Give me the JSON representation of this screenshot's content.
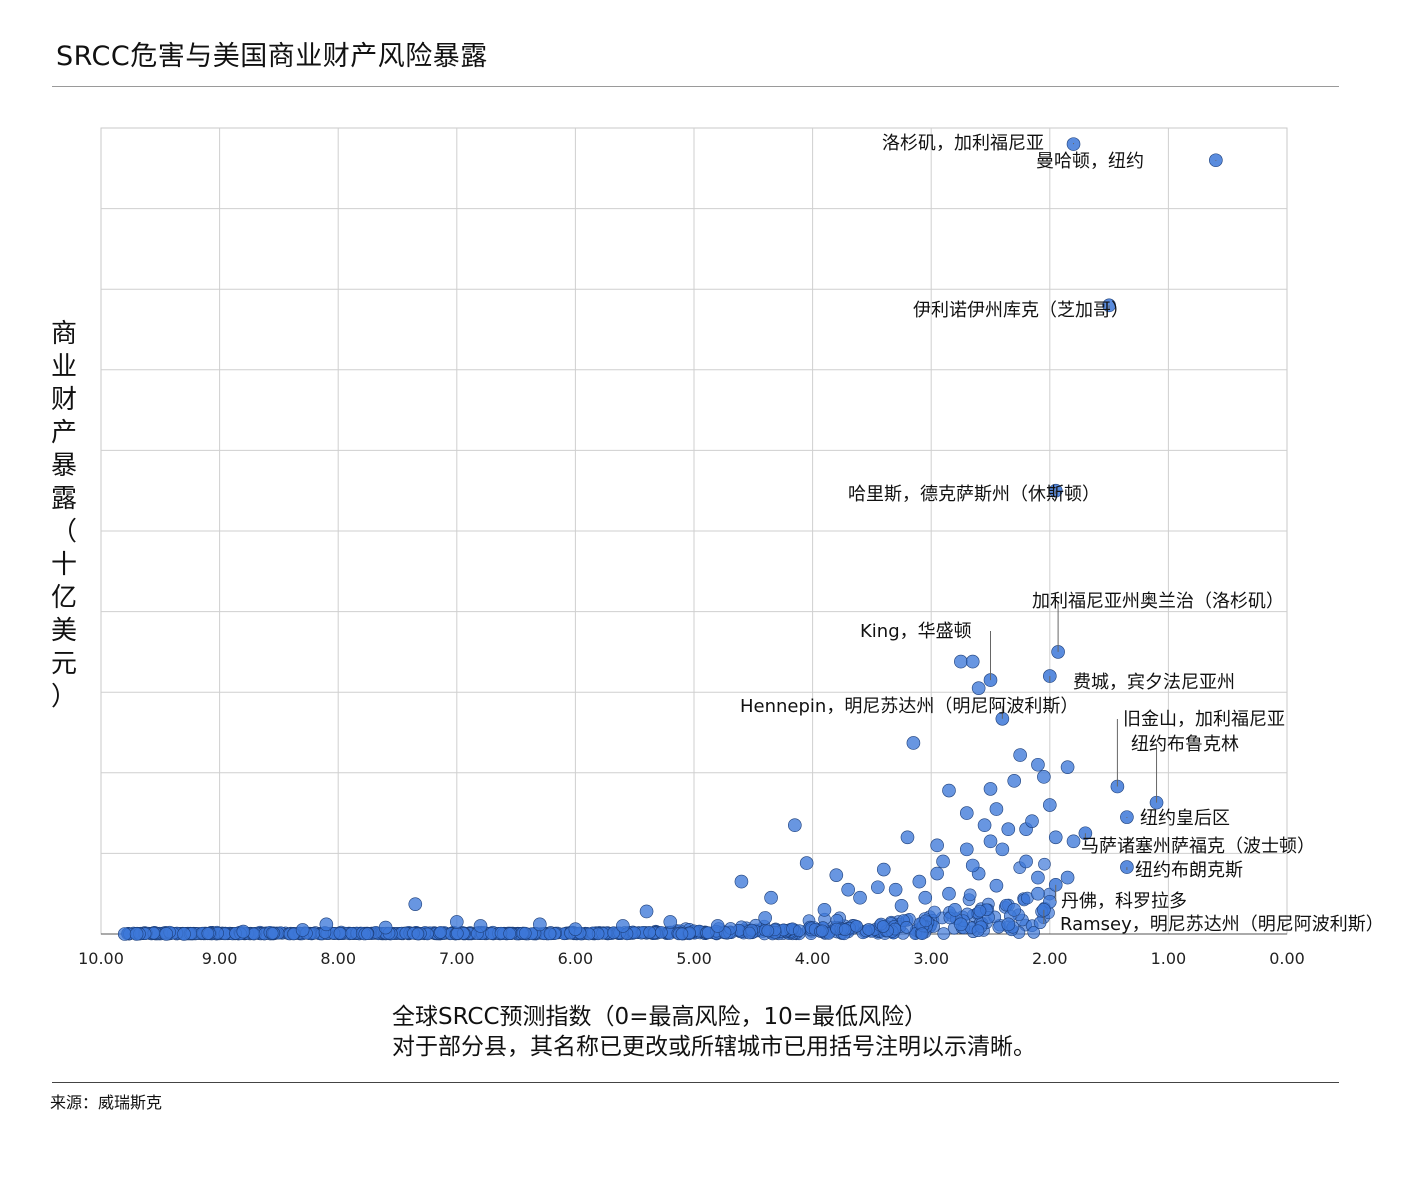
{
  "title": "SRCC危害与美国商业财产风险暴露",
  "source": "来源：威瑞斯克",
  "chart_data": {
    "type": "scatter",
    "title": "SRCC危害与美国商业财产风险暴露",
    "xlabel": "全球SRCC预测指数（0=最高风险，10=最低风险）",
    "xlabel_note": "对于部分县，其名称已更改或所辖城市已用括号注明以示清晰。",
    "ylabel": "商业财产暴露（十亿美元）",
    "x_reversed": true,
    "xlim": [
      10,
      0
    ],
    "x_ticks": [
      "10.00",
      "9.00",
      "8.00",
      "7.00",
      "6.00",
      "5.00",
      "4.00",
      "3.00",
      "2.00",
      "1.00",
      "0.00"
    ],
    "y_tick_labels_shown": false,
    "grid": true,
    "point_color": "#3d78d8",
    "labeled_points": [
      {
        "label": "洛杉矶，加利福尼亚",
        "x": 1.8,
        "y": 9.8
      },
      {
        "label": "曼哈顿，纽约",
        "x": 0.6,
        "y": 9.6
      },
      {
        "label": "伊利诺伊州库克（芝加哥）",
        "x": 1.5,
        "y": 7.8
      },
      {
        "label": "哈里斯，德克萨斯州（休斯顿）",
        "x": 1.95,
        "y": 5.5
      },
      {
        "label": "加利福尼亚州奥兰治（洛杉矶）",
        "x": 1.93,
        "y": 3.5
      },
      {
        "label": "King，华盛顿",
        "x": 2.5,
        "y": 3.15
      },
      {
        "label": "费城，宾夕法尼亚州",
        "x": 2.0,
        "y": 3.2
      },
      {
        "label": "Hennepin，明尼苏达州（明尼阿波利斯）",
        "x": 2.4,
        "y": 2.67
      },
      {
        "label": "旧金山，加利福尼亚",
        "x": 1.43,
        "y": 1.83
      },
      {
        "label": "纽约布鲁克林",
        "x": 1.1,
        "y": 1.63
      },
      {
        "label": "纽约皇后区",
        "x": 1.35,
        "y": 1.45
      },
      {
        "label": "马萨诸塞州萨福克（波士顿）",
        "x": 1.7,
        "y": 1.25
      },
      {
        "label": "纽约布朗克斯",
        "x": 1.35,
        "y": 0.83
      },
      {
        "label": "丹佛，科罗拉多",
        "x": 1.95,
        "y": 0.61
      },
      {
        "label": "Ramsey，明尼苏达州（明尼阿波利斯）",
        "x": 2.05,
        "y": 0.3
      }
    ],
    "other_points": [
      [
        7.35,
        0.37
      ],
      [
        4.15,
        1.35
      ],
      [
        3.15,
        2.37
      ],
      [
        2.85,
        1.78
      ],
      [
        4.6,
        0.65
      ],
      [
        4.05,
        0.88
      ],
      [
        3.8,
        0.73
      ],
      [
        3.2,
        1.2
      ],
      [
        2.75,
        3.38
      ],
      [
        2.65,
        3.38
      ],
      [
        2.6,
        3.05
      ],
      [
        2.1,
        2.1
      ],
      [
        2.25,
        2.22
      ],
      [
        2.05,
        1.95
      ],
      [
        1.85,
        2.07
      ],
      [
        2.3,
        1.9
      ],
      [
        2.5,
        1.8
      ],
      [
        2.7,
        1.5
      ],
      [
        2.2,
        1.3
      ],
      [
        1.8,
        1.15
      ],
      [
        2.4,
        1.05
      ],
      [
        2.9,
        0.9
      ],
      [
        2.6,
        0.75
      ],
      [
        3.4,
        0.8
      ],
      [
        3.7,
        0.55
      ],
      [
        2.1,
        0.5
      ],
      [
        2.3,
        0.3
      ],
      [
        2.75,
        0.12
      ],
      [
        2.35,
        0.12
      ],
      [
        1.85,
        0.7
      ],
      [
        2.95,
        1.1
      ],
      [
        2.55,
        1.35
      ],
      [
        2.0,
        1.6
      ],
      [
        2.15,
        1.4
      ],
      [
        2.45,
        1.55
      ],
      [
        3.3,
        0.55
      ],
      [
        4.35,
        0.45
      ],
      [
        5.4,
        0.28
      ],
      [
        6.3,
        0.12
      ],
      [
        7.0,
        0.15
      ],
      [
        8.1,
        0.12
      ],
      [
        9.8,
        0.0
      ],
      [
        9.7,
        0.0
      ],
      [
        9.45,
        0.0
      ],
      [
        9.3,
        0.0
      ],
      [
        8.8,
        0.03
      ],
      [
        8.3,
        0.05
      ],
      [
        7.6,
        0.08
      ],
      [
        6.8,
        0.1
      ],
      [
        6.0,
        0.06
      ],
      [
        5.6,
        0.1
      ],
      [
        5.2,
        0.15
      ],
      [
        4.8,
        0.1
      ],
      [
        4.4,
        0.2
      ],
      [
        3.9,
        0.3
      ],
      [
        3.6,
        0.45
      ],
      [
        3.45,
        0.58
      ],
      [
        3.1,
        0.65
      ],
      [
        2.85,
        0.5
      ],
      [
        2.65,
        0.85
      ],
      [
        2.5,
        1.15
      ],
      [
        2.7,
        1.05
      ],
      [
        2.95,
        0.75
      ],
      [
        3.05,
        0.45
      ],
      [
        3.25,
        0.35
      ],
      [
        2.8,
        0.3
      ],
      [
        2.45,
        0.6
      ],
      [
        2.2,
        0.9
      ],
      [
        2.1,
        0.7
      ],
      [
        2.0,
        0.4
      ],
      [
        1.95,
        1.2
      ],
      [
        2.35,
        1.3
      ]
    ]
  }
}
